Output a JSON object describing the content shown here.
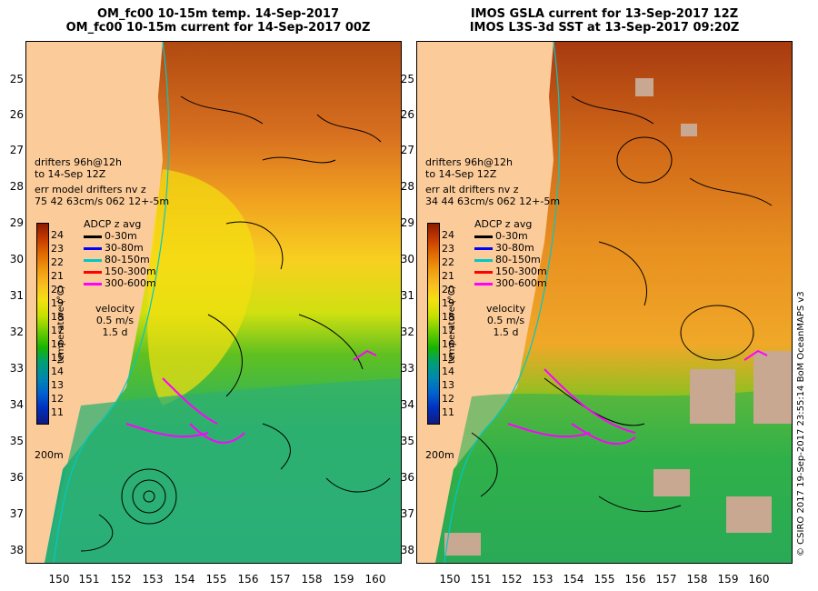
{
  "left": {
    "title_line1": "OM_fc00 10-15m temp. 14-Sep-2017",
    "title_line2": "OM_fc00 10-15m current for 14-Sep-2017 00Z",
    "drifters_line1": "drifters 96h@12h",
    "drifters_line2": "to 14-Sep 12Z",
    "err_line1": "err model drifters nv z",
    "err_line2": "75 42 63cm/s 062 12+-5m"
  },
  "right": {
    "title_line1": "IMOS GSLA current for 13-Sep-2017 12Z",
    "title_line2": "IMOS L3S-3d SST at 13-Sep-2017 09:20Z",
    "drifters_line1": "drifters 96h@12h",
    "drifters_line2": "to 14-Sep 12Z",
    "err_line1": "err alt drifters nv z",
    "err_line2": "34 44 63cm/s 062 12+-5m"
  },
  "y_ticks": [
    "25",
    "26",
    "27",
    "28",
    "29",
    "30",
    "31",
    "32",
    "33",
    "34",
    "35",
    "36",
    "37",
    "38"
  ],
  "x_ticks": [
    "150",
    "151",
    "152",
    "153",
    "154",
    "155",
    "156",
    "157",
    "158",
    "159",
    "160"
  ],
  "colorbar": {
    "ticks": [
      "24",
      "23",
      "22",
      "21",
      "20",
      "19",
      "18",
      "17",
      "16",
      "15",
      "14",
      "13",
      "12",
      "11"
    ],
    "label": "temperature (°C)",
    "colors": [
      "#8b1a00",
      "#c83c00",
      "#e06a00",
      "#f09a10",
      "#f8c020",
      "#f4e010",
      "#c8e000",
      "#6ccc00",
      "#18b400",
      "#00a070",
      "#0088b0",
      "#0060d0",
      "#0030c0",
      "#101a80"
    ]
  },
  "legend": {
    "title": "ADCP z avg",
    "items": [
      {
        "label": "0-30m",
        "color": "#000000"
      },
      {
        "label": "30-80m",
        "color": "#0000ff"
      },
      {
        "label": "80-150m",
        "color": "#00c8c8"
      },
      {
        "label": "150-300m",
        "color": "#ff0000"
      },
      {
        "label": "300-600m",
        "color": "#ff00ff"
      }
    ]
  },
  "velocity": {
    "label": "velocity",
    "scale1": "0.5 m/s",
    "scale2": "1.5 d"
  },
  "isobath": "200m",
  "credit": "© CSIRO 2017  19-Sep-2017 23:55:14 BoM OceanMAPS v3",
  "colors": {
    "land": "#fbcb9a",
    "drifter": "#ff00ff",
    "isobath": "#00c8c8"
  }
}
